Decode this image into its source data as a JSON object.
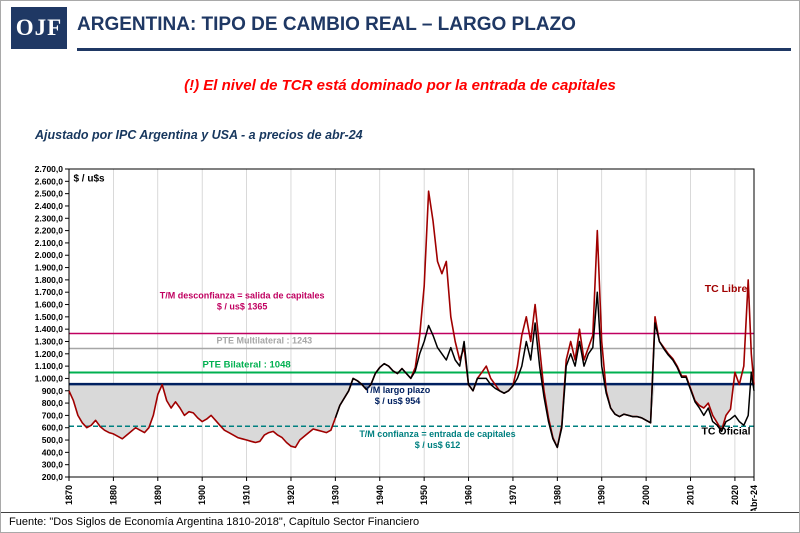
{
  "header": {
    "logo_text": "OJF",
    "title": "ARGENTINA: TIPO DE CAMBIO REAL – LARGO PLAZO"
  },
  "subtitle": "(!) El nivel de TCR está dominado por la entrada de capitales",
  "note": "Ajustado por IPC Argentina y USA - a precios de abr-24",
  "footer": {
    "text": "Fuente: \"Dos Siglos de Economía Argentina 1810-2018\", Capítulo Sector Financiero"
  },
  "chart_data": {
    "type": "line",
    "y_axis_unit": "$ / u$s",
    "ylim": [
      200,
      2700
    ],
    "y_tick_step": 100,
    "y_ticks": [
      "200,0",
      "300,0",
      "400,0",
      "500,0",
      "600,0",
      "700,0",
      "800,0",
      "900,0",
      "1.000,0",
      "1.100,0",
      "1.200,0",
      "1.300,0",
      "1.400,0",
      "1.500,0",
      "1.600,0",
      "1.700,0",
      "1.800,0",
      "1.900,0",
      "2.000,0",
      "2.100,0",
      "2.200,0",
      "2.300,0",
      "2.400,0",
      "2.500,0",
      "2.600,0",
      "2.700,0"
    ],
    "xlim": [
      1870,
      2024.3
    ],
    "x_ticks": [
      1870,
      1880,
      1890,
      1900,
      1910,
      1920,
      1930,
      1940,
      1950,
      1960,
      1970,
      1980,
      1990,
      2000,
      2010,
      2020
    ],
    "x_last_label": "Abr-24",
    "grid": "vertical-decade-lines",
    "shaded_area": {
      "series": "TC Libre",
      "against_value": 954,
      "color": "#D9D9D9"
    },
    "reference_lines": [
      {
        "name": "tm-desconfianza",
        "value": 1365,
        "color": "#C00060",
        "style": "solid",
        "width": 1.5
      },
      {
        "name": "pte-multilateral",
        "value": 1243,
        "color": "#A6A6A6",
        "style": "solid",
        "width": 1.5
      },
      {
        "name": "pte-bilateral",
        "value": 1048,
        "color": "#00B050",
        "style": "solid",
        "width": 2
      },
      {
        "name": "tm-largo-plazo",
        "value": 954,
        "color": "#002060",
        "style": "solid",
        "width": 2.5
      },
      {
        "name": "tm-confianza",
        "value": 612,
        "color": "#008080",
        "style": "dashed",
        "width": 1.5
      }
    ],
    "series": [
      {
        "name": "TC Libre",
        "data_name": "tc-libre-line",
        "color": "#A00000",
        "width": 1.6,
        "points": [
          [
            1870,
            900
          ],
          [
            1871,
            820
          ],
          [
            1872,
            700
          ],
          [
            1873,
            640
          ],
          [
            1874,
            600
          ],
          [
            1875,
            620
          ],
          [
            1876,
            660
          ],
          [
            1877,
            610
          ],
          [
            1878,
            580
          ],
          [
            1879,
            560
          ],
          [
            1880,
            550
          ],
          [
            1881,
            530
          ],
          [
            1882,
            510
          ],
          [
            1883,
            540
          ],
          [
            1884,
            570
          ],
          [
            1885,
            600
          ],
          [
            1886,
            580
          ],
          [
            1887,
            560
          ],
          [
            1888,
            600
          ],
          [
            1889,
            700
          ],
          [
            1890,
            870
          ],
          [
            1891,
            950
          ],
          [
            1892,
            820
          ],
          [
            1893,
            760
          ],
          [
            1894,
            810
          ],
          [
            1895,
            760
          ],
          [
            1896,
            700
          ],
          [
            1897,
            730
          ],
          [
            1898,
            720
          ],
          [
            1899,
            680
          ],
          [
            1900,
            650
          ],
          [
            1901,
            670
          ],
          [
            1902,
            700
          ],
          [
            1903,
            660
          ],
          [
            1904,
            620
          ],
          [
            1905,
            580
          ],
          [
            1906,
            560
          ],
          [
            1907,
            540
          ],
          [
            1908,
            520
          ],
          [
            1909,
            510
          ],
          [
            1910,
            500
          ],
          [
            1911,
            490
          ],
          [
            1912,
            480
          ],
          [
            1913,
            490
          ],
          [
            1914,
            540
          ],
          [
            1915,
            560
          ],
          [
            1916,
            570
          ],
          [
            1917,
            540
          ],
          [
            1918,
            520
          ],
          [
            1919,
            480
          ],
          [
            1920,
            450
          ],
          [
            1921,
            440
          ],
          [
            1922,
            500
          ],
          [
            1923,
            530
          ],
          [
            1924,
            560
          ],
          [
            1925,
            590
          ],
          [
            1926,
            580
          ],
          [
            1927,
            570
          ],
          [
            1928,
            560
          ],
          [
            1929,
            580
          ],
          [
            1930,
            680
          ],
          [
            1931,
            780
          ],
          [
            1932,
            840
          ],
          [
            1933,
            900
          ],
          [
            1934,
            1000
          ],
          [
            1935,
            980
          ],
          [
            1936,
            950
          ],
          [
            1937,
            910
          ],
          [
            1938,
            950
          ],
          [
            1939,
            1040
          ],
          [
            1940,
            1090
          ],
          [
            1941,
            1120
          ],
          [
            1942,
            1100
          ],
          [
            1943,
            1060
          ],
          [
            1944,
            1040
          ],
          [
            1945,
            1080
          ],
          [
            1946,
            1040
          ],
          [
            1947,
            1000
          ],
          [
            1948,
            1090
          ],
          [
            1949,
            1350
          ],
          [
            1950,
            1750
          ],
          [
            1951,
            2520
          ],
          [
            1952,
            2280
          ],
          [
            1953,
            1950
          ],
          [
            1954,
            1850
          ],
          [
            1955,
            1950
          ],
          [
            1956,
            1500
          ],
          [
            1957,
            1300
          ],
          [
            1958,
            1150
          ],
          [
            1959,
            1250
          ],
          [
            1960,
            950
          ],
          [
            1961,
            900
          ],
          [
            1962,
            1000
          ],
          [
            1963,
            1050
          ],
          [
            1964,
            1100
          ],
          [
            1965,
            1000
          ],
          [
            1966,
            950
          ],
          [
            1967,
            900
          ],
          [
            1968,
            880
          ],
          [
            1969,
            900
          ],
          [
            1970,
            940
          ],
          [
            1971,
            1100
          ],
          [
            1972,
            1350
          ],
          [
            1973,
            1500
          ],
          [
            1974,
            1300
          ],
          [
            1975,
            1600
          ],
          [
            1976,
            1250
          ],
          [
            1977,
            900
          ],
          [
            1978,
            680
          ],
          [
            1979,
            520
          ],
          [
            1980,
            440
          ],
          [
            1981,
            620
          ],
          [
            1982,
            1150
          ],
          [
            1983,
            1300
          ],
          [
            1984,
            1150
          ],
          [
            1985,
            1400
          ],
          [
            1986,
            1150
          ],
          [
            1987,
            1250
          ],
          [
            1988,
            1350
          ],
          [
            1989,
            2200
          ],
          [
            1990,
            1300
          ],
          [
            1991,
            900
          ],
          [
            1992,
            760
          ],
          [
            1993,
            710
          ],
          [
            1994,
            690
          ],
          [
            1995,
            710
          ],
          [
            1996,
            700
          ],
          [
            1997,
            690
          ],
          [
            1998,
            690
          ],
          [
            1999,
            680
          ],
          [
            2000,
            660
          ],
          [
            2001,
            640
          ],
          [
            2002,
            1500
          ],
          [
            2003,
            1300
          ],
          [
            2004,
            1250
          ],
          [
            2005,
            1200
          ],
          [
            2006,
            1160
          ],
          [
            2007,
            1100
          ],
          [
            2008,
            1020
          ],
          [
            2009,
            1020
          ],
          [
            2010,
            920
          ],
          [
            2011,
            820
          ],
          [
            2012,
            780
          ],
          [
            2013,
            760
          ],
          [
            2014,
            800
          ],
          [
            2015,
            700
          ],
          [
            2016,
            640
          ],
          [
            2017,
            580
          ],
          [
            2018,
            700
          ],
          [
            2019,
            750
          ],
          [
            2020,
            1050
          ],
          [
            2021,
            950
          ],
          [
            2022,
            1100
          ],
          [
            2023,
            1800
          ],
          [
            2023.7,
            1200
          ],
          [
            2024.3,
            950
          ]
        ]
      },
      {
        "name": "TC Oficial",
        "data_name": "tc-oficial-line",
        "color": "#000000",
        "width": 1.5,
        "points": [
          [
            1930,
            680
          ],
          [
            1931,
            780
          ],
          [
            1932,
            840
          ],
          [
            1933,
            900
          ],
          [
            1934,
            1000
          ],
          [
            1935,
            980
          ],
          [
            1936,
            950
          ],
          [
            1937,
            910
          ],
          [
            1938,
            950
          ],
          [
            1939,
            1040
          ],
          [
            1940,
            1090
          ],
          [
            1941,
            1120
          ],
          [
            1942,
            1100
          ],
          [
            1943,
            1060
          ],
          [
            1944,
            1040
          ],
          [
            1945,
            1080
          ],
          [
            1946,
            1040
          ],
          [
            1947,
            1000
          ],
          [
            1948,
            1060
          ],
          [
            1949,
            1200
          ],
          [
            1950,
            1300
          ],
          [
            1951,
            1430
          ],
          [
            1952,
            1350
          ],
          [
            1953,
            1250
          ],
          [
            1954,
            1200
          ],
          [
            1955,
            1150
          ],
          [
            1956,
            1250
          ],
          [
            1957,
            1150
          ],
          [
            1958,
            1100
          ],
          [
            1959,
            1300
          ],
          [
            1960,
            950
          ],
          [
            1961,
            900
          ],
          [
            1962,
            1000
          ],
          [
            1963,
            1000
          ],
          [
            1964,
            1000
          ],
          [
            1965,
            950
          ],
          [
            1966,
            920
          ],
          [
            1967,
            900
          ],
          [
            1968,
            880
          ],
          [
            1969,
            900
          ],
          [
            1970,
            940
          ],
          [
            1971,
            1000
          ],
          [
            1972,
            1100
          ],
          [
            1973,
            1300
          ],
          [
            1974,
            1150
          ],
          [
            1975,
            1450
          ],
          [
            1976,
            1100
          ],
          [
            1977,
            850
          ],
          [
            1978,
            650
          ],
          [
            1979,
            510
          ],
          [
            1980,
            440
          ],
          [
            1981,
            600
          ],
          [
            1982,
            1100
          ],
          [
            1983,
            1200
          ],
          [
            1984,
            1100
          ],
          [
            1985,
            1300
          ],
          [
            1986,
            1100
          ],
          [
            1987,
            1200
          ],
          [
            1988,
            1250
          ],
          [
            1989,
            1700
          ],
          [
            1990,
            1100
          ],
          [
            1991,
            880
          ],
          [
            1992,
            760
          ],
          [
            1993,
            710
          ],
          [
            1994,
            690
          ],
          [
            1995,
            710
          ],
          [
            1996,
            700
          ],
          [
            1997,
            690
          ],
          [
            1998,
            690
          ],
          [
            1999,
            680
          ],
          [
            2000,
            660
          ],
          [
            2001,
            640
          ],
          [
            2002,
            1450
          ],
          [
            2003,
            1300
          ],
          [
            2004,
            1240
          ],
          [
            2005,
            1190
          ],
          [
            2006,
            1150
          ],
          [
            2007,
            1090
          ],
          [
            2008,
            1010
          ],
          [
            2009,
            1010
          ],
          [
            2010,
            910
          ],
          [
            2011,
            810
          ],
          [
            2012,
            760
          ],
          [
            2013,
            700
          ],
          [
            2014,
            760
          ],
          [
            2015,
            650
          ],
          [
            2016,
            620
          ],
          [
            2017,
            570
          ],
          [
            2018,
            650
          ],
          [
            2019,
            670
          ],
          [
            2020,
            700
          ],
          [
            2021,
            650
          ],
          [
            2022,
            620
          ],
          [
            2023,
            700
          ],
          [
            2023.7,
            1050
          ],
          [
            2024.3,
            900
          ]
        ]
      }
    ],
    "annotations": [
      {
        "name": "y-axis-unit-label",
        "lines": [
          "$ / u$s"
        ],
        "color": "#000000",
        "x": 1871,
        "y": 2600,
        "size": 10,
        "bold": true,
        "anchor": "start"
      },
      {
        "name": "tm-desconfianza-label",
        "lines": [
          "T/M desconfianza = salida de capitales",
          "$ / us$ 1365"
        ],
        "color": "#C00060",
        "x": 1909,
        "y": 1650,
        "size": 9,
        "bold": true
      },
      {
        "name": "pte-multilateral-label",
        "lines": [
          "PTE Multilateral : 1243"
        ],
        "color": "#A6A6A6",
        "x": 1914,
        "y": 1285,
        "size": 9,
        "bold": true
      },
      {
        "name": "pte-bilateral-label",
        "lines": [
          "PTE Bilateral : 1048"
        ],
        "color": "#00B050",
        "x": 1910,
        "y": 1090,
        "size": 9.5,
        "bold": true
      },
      {
        "name": "tm-largo-plazo-label",
        "lines": [
          "T/M largo plazo",
          "$ / us$ 954"
        ],
        "color": "#002060",
        "x": 1944,
        "y": 880,
        "size": 9,
        "bold": true
      },
      {
        "name": "tm-confianza-label",
        "lines": [
          "T/M confianza = entrada de capitales",
          "$ / us$ 612"
        ],
        "color": "#008080",
        "x": 1953,
        "y": 525,
        "size": 9,
        "bold": true
      },
      {
        "name": "tc-libre-label",
        "lines": [
          "TC Libre"
        ],
        "color": "#A00000",
        "x": 2018,
        "y": 1700,
        "size": 10.5,
        "bold": true
      },
      {
        "name": "tc-oficial-label",
        "lines": [
          "TC Oficial"
        ],
        "color": "#000000",
        "x": 2018,
        "y": 545,
        "size": 10.5,
        "bold": true
      }
    ]
  }
}
